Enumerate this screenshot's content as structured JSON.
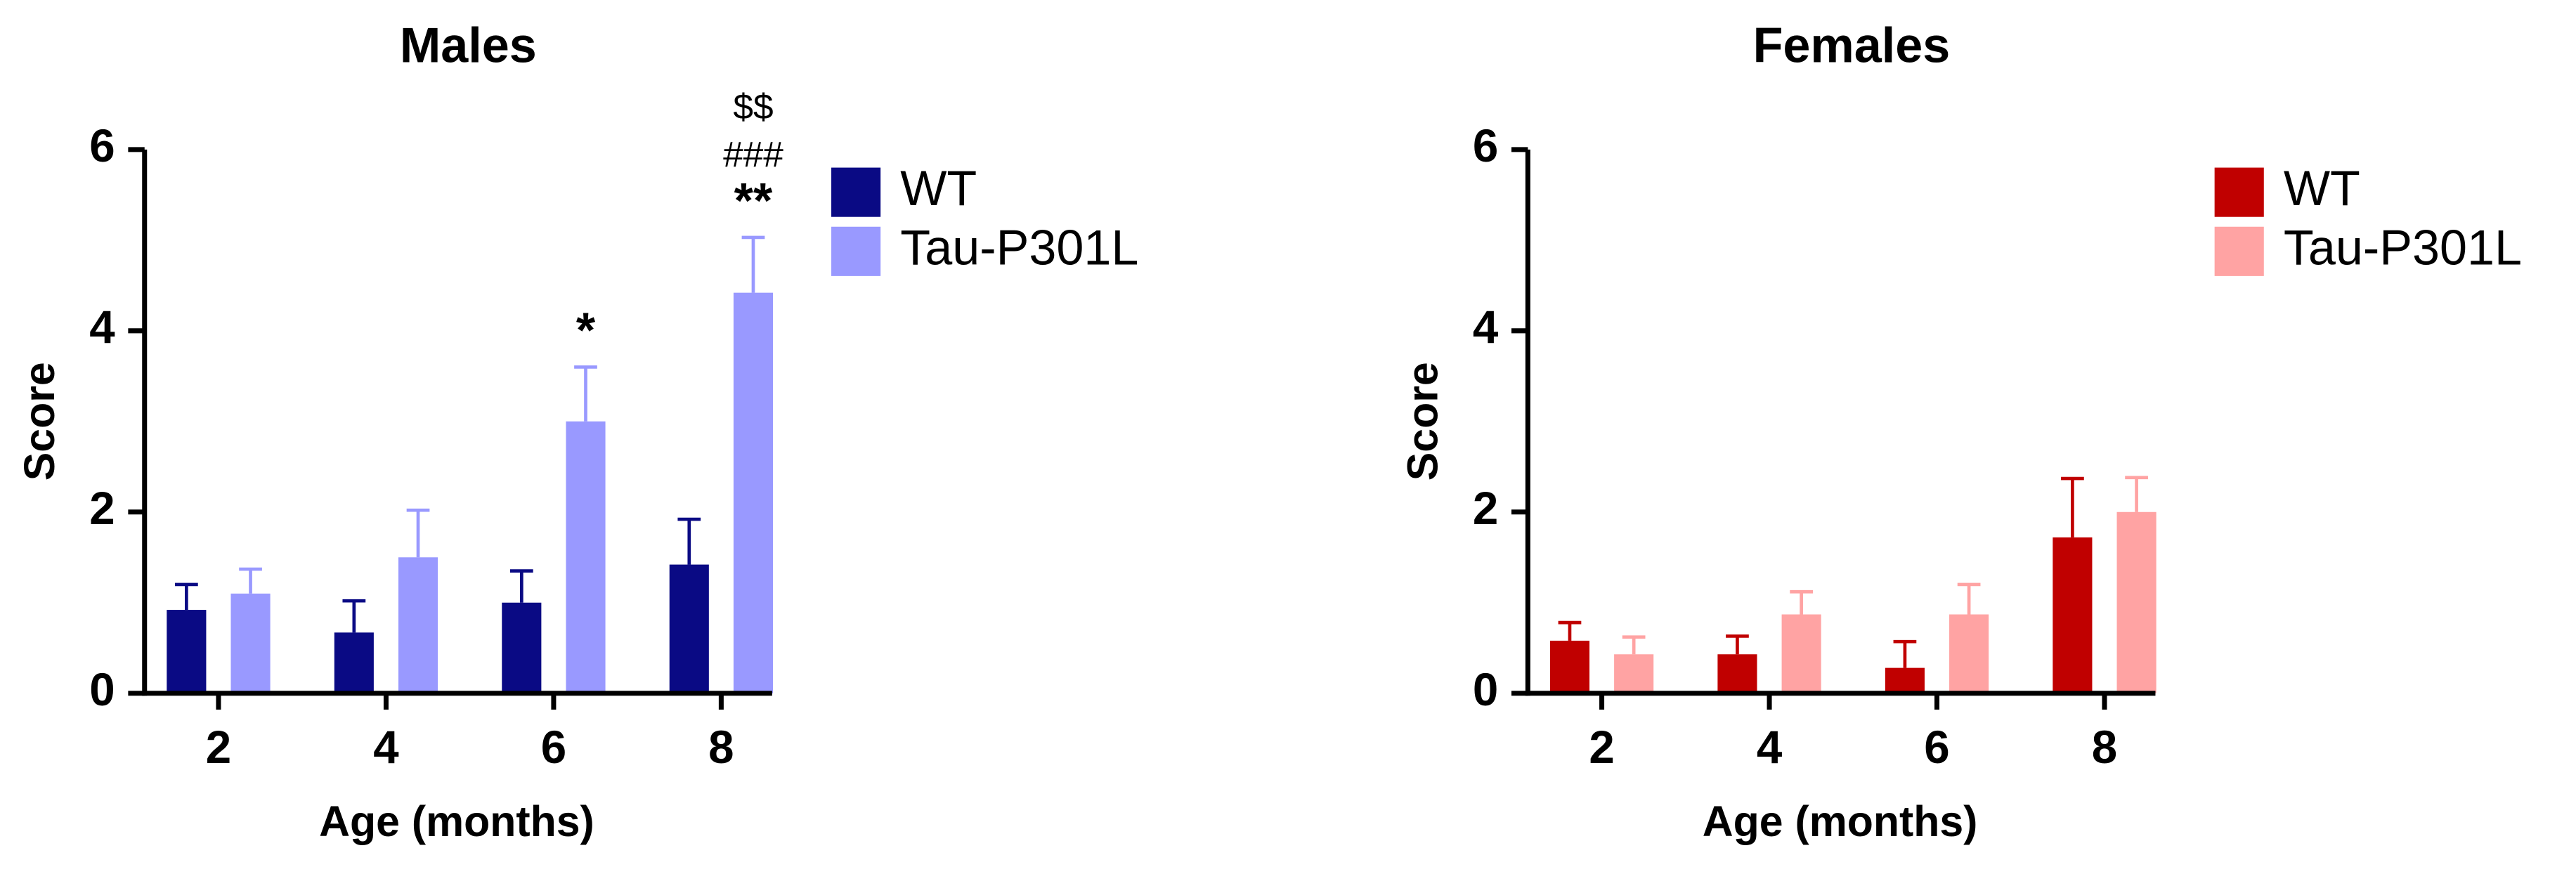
{
  "chart_data": [
    {
      "type": "bar",
      "title": "Males",
      "xlabel": "Age (months)",
      "ylabel": "Score",
      "categories": [
        "2",
        "4",
        "6",
        "8"
      ],
      "series": [
        {
          "name": "WT",
          "color": "#0a0a84",
          "values": [
            0.92,
            0.67,
            1.0,
            1.42
          ],
          "errors": [
            0.28,
            0.35,
            0.35,
            0.5
          ]
        },
        {
          "name": "Tau-P301L",
          "color": "#9999ff",
          "values": [
            1.1,
            1.5,
            3.0,
            4.42
          ],
          "errors": [
            0.27,
            0.52,
            0.6,
            0.61
          ],
          "annotations": [
            [],
            [],
            [
              "*"
            ],
            [
              "$$",
              "###",
              "**"
            ]
          ]
        }
      ],
      "ylim": [
        0,
        6
      ],
      "yticks": [
        0,
        2,
        4,
        6
      ]
    },
    {
      "type": "bar",
      "title": "Females",
      "xlabel": "Age (months)",
      "ylabel": "Score",
      "categories": [
        "2",
        "4",
        "6",
        "8"
      ],
      "series": [
        {
          "name": "WT",
          "color": "#c00000",
          "values": [
            0.58,
            0.43,
            0.28,
            1.72
          ],
          "errors": [
            0.2,
            0.2,
            0.29,
            0.65
          ]
        },
        {
          "name": "Tau-P301L",
          "color": "#ffa3a3",
          "values": [
            0.43,
            0.87,
            0.87,
            2.0
          ],
          "errors": [
            0.19,
            0.25,
            0.33,
            0.38
          ]
        }
      ],
      "ylim": [
        0,
        6
      ],
      "yticks": [
        0,
        2,
        4,
        6
      ]
    }
  ]
}
